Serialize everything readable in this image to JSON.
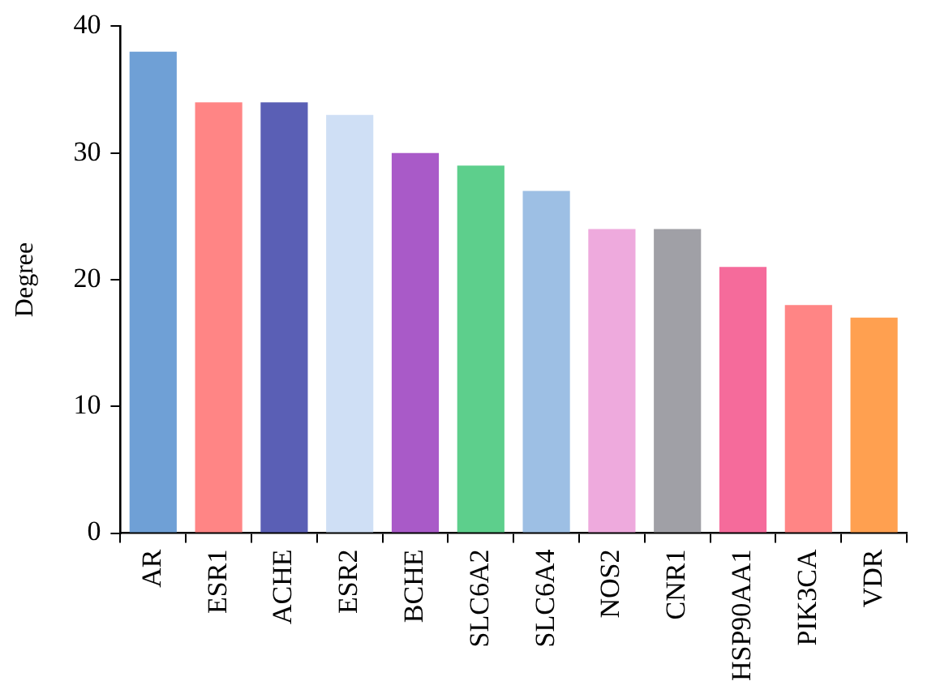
{
  "chart_data": {
    "type": "bar",
    "ylabel": "Degree",
    "categories": [
      "AR",
      "ESR1",
      "ACHE",
      "ESR2",
      "BCHE",
      "SLC6A2",
      "SLC6A4",
      "NOS2",
      "CNR1",
      "HSP90AA1",
      "PIK3CA",
      "VDR"
    ],
    "values": [
      38,
      34,
      34,
      33,
      30,
      29,
      27,
      24,
      24,
      21,
      18,
      17
    ],
    "colors": [
      "#6fa0d6",
      "#ff8585",
      "#5a5fb5",
      "#cfdff5",
      "#a95ac8",
      "#5dcf8c",
      "#9dbfe4",
      "#eeaadd",
      "#a0a0a6",
      "#f56b9b",
      "#ff8585",
      "#ffa050"
    ],
    "ylim": [
      0,
      40
    ],
    "yticks": [
      0,
      10,
      20,
      30,
      40
    ],
    "grid": false,
    "legend": false
  }
}
